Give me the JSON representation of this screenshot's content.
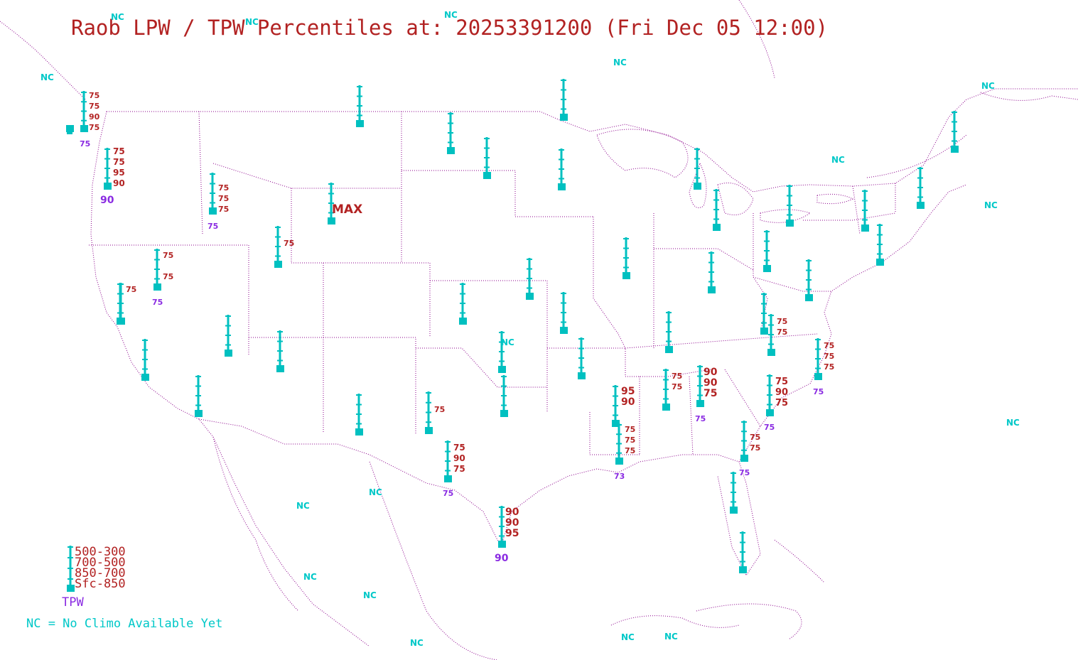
{
  "title": "Raob LPW / TPW Percentiles at: 20253391200 (Fri Dec 05 12:00)",
  "colors": {
    "station": "#00c0c0",
    "layer_percentile": "#b22222",
    "tpw_percentile": "#8a2be2",
    "no_climo": "#00c8c8",
    "borders": "#8b008b"
  },
  "legend": {
    "layers": [
      "500-300",
      "700-500",
      "850-700",
      "Sfc-850"
    ],
    "tpw_label": "TPW",
    "nc_note": "NC = No Climo Available Yet"
  },
  "stations": [
    {
      "id": "s01",
      "labels": [
        "75",
        "75",
        "90",
        "75"
      ],
      "tpw": "75"
    },
    {
      "id": "s02",
      "labels": [
        "75",
        "75",
        "95",
        "90"
      ],
      "tpw": "90"
    },
    {
      "id": "s03",
      "labels": [
        "75",
        "75",
        "75"
      ],
      "tpw": "75"
    },
    {
      "id": "s04",
      "labels": [
        "75"
      ],
      "tpw": ""
    },
    {
      "id": "s05",
      "labels": [
        "MAX"
      ],
      "tpw": ""
    },
    {
      "id": "s06",
      "labels": [
        "75",
        "75"
      ],
      "tpw": "75"
    },
    {
      "id": "s07",
      "labels": [
        "75"
      ],
      "tpw": ""
    },
    {
      "id": "s08",
      "labels": [
        "75"
      ],
      "tpw": ""
    },
    {
      "id": "s09",
      "labels": [
        "75",
        "90",
        "75"
      ],
      "tpw": "75"
    },
    {
      "id": "s10",
      "labels": [
        "90",
        "90",
        "95"
      ],
      "tpw": "90"
    },
    {
      "id": "s11",
      "labels": [
        "95",
        "90"
      ],
      "tpw": ""
    },
    {
      "id": "s12",
      "labels": [
        "75",
        "75",
        "75"
      ],
      "tpw": "73"
    },
    {
      "id": "s13",
      "labels": [
        "75",
        "75"
      ],
      "tpw": ""
    },
    {
      "id": "s14",
      "labels": [
        "90",
        "90",
        "75"
      ],
      "tpw": "75"
    },
    {
      "id": "s15",
      "labels": [
        "75",
        "90",
        "75"
      ],
      "tpw": "75"
    },
    {
      "id": "s16",
      "labels": [
        "75",
        "75"
      ],
      "tpw": "75"
    },
    {
      "id": "s17",
      "labels": [
        "75",
        "75"
      ],
      "tpw": ""
    },
    {
      "id": "s18",
      "labels": [
        "75",
        "75",
        "75"
      ],
      "tpw": "75"
    },
    {
      "id": "s19",
      "labels": [],
      "tpw": ""
    },
    {
      "id": "s20",
      "labels": [],
      "tpw": ""
    },
    {
      "id": "s21",
      "labels": [],
      "tpw": ""
    },
    {
      "id": "s22",
      "labels": [],
      "tpw": ""
    },
    {
      "id": "s23",
      "labels": [],
      "tpw": ""
    },
    {
      "id": "s24",
      "labels": [],
      "tpw": ""
    },
    {
      "id": "s25",
      "labels": [],
      "tpw": ""
    },
    {
      "id": "s26",
      "labels": [],
      "tpw": ""
    },
    {
      "id": "s27",
      "labels": [],
      "tpw": ""
    },
    {
      "id": "s28",
      "labels": [],
      "tpw": ""
    },
    {
      "id": "s29",
      "labels": [],
      "tpw": ""
    },
    {
      "id": "s30",
      "labels": [],
      "tpw": ""
    },
    {
      "id": "s31",
      "labels": [],
      "tpw": ""
    },
    {
      "id": "s32",
      "labels": [],
      "tpw": ""
    },
    {
      "id": "s33",
      "labels": [],
      "tpw": ""
    },
    {
      "id": "s34",
      "labels": [],
      "tpw": ""
    },
    {
      "id": "s35",
      "labels": [],
      "tpw": ""
    },
    {
      "id": "s36",
      "labels": [],
      "tpw": ""
    },
    {
      "id": "s37",
      "labels": [],
      "tpw": ""
    },
    {
      "id": "s38",
      "labels": [],
      "tpw": ""
    },
    {
      "id": "s39",
      "labels": [],
      "tpw": ""
    },
    {
      "id": "s40",
      "labels": [],
      "tpw": ""
    },
    {
      "id": "s41",
      "labels": [],
      "tpw": ""
    },
    {
      "id": "s42",
      "labels": [],
      "tpw": ""
    },
    {
      "id": "s43",
      "labels": [],
      "tpw": ""
    },
    {
      "id": "s44",
      "labels": [],
      "tpw": ""
    },
    {
      "id": "s45",
      "labels": [],
      "tpw": ""
    },
    {
      "id": "s46",
      "labels": [],
      "tpw": ""
    },
    {
      "id": "s47",
      "labels": [],
      "tpw": ""
    },
    {
      "id": "s48",
      "labels": [],
      "tpw": ""
    },
    {
      "id": "s49",
      "labels": [],
      "tpw": ""
    },
    {
      "id": "s50",
      "labels": [],
      "tpw": ""
    },
    {
      "id": "s51",
      "labels": [],
      "tpw": ""
    }
  ],
  "nc_markers": [
    "NC",
    "NC",
    "NC",
    "NC",
    "NC",
    "NC",
    "NC",
    "NC",
    "NC",
    "NC",
    "NC",
    "NC",
    "NC",
    "NC",
    "NC",
    "NC",
    "NC",
    "NC"
  ]
}
